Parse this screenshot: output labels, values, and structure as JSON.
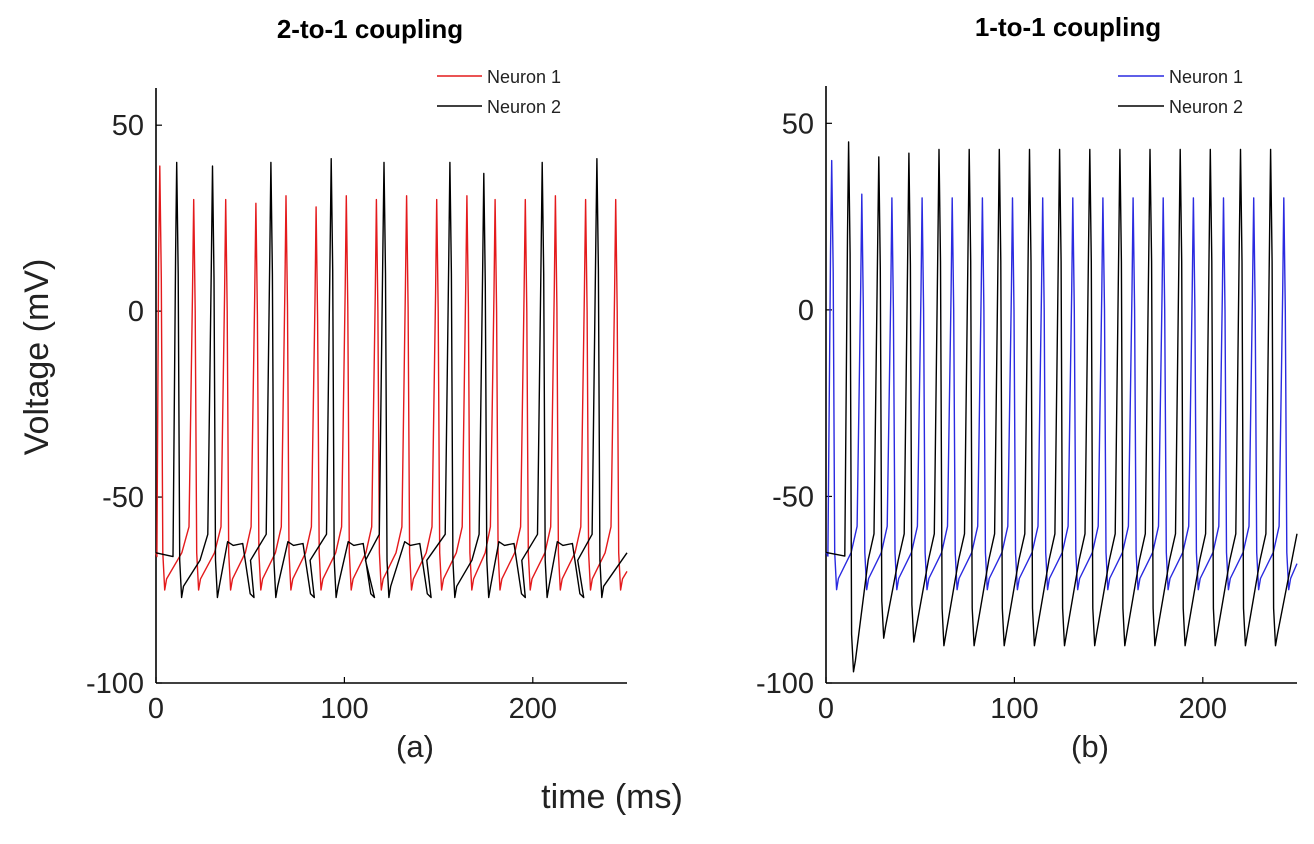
{
  "figure": {
    "xlabel": "time (ms)",
    "ylabel": "Voltage (mV)"
  },
  "colors": {
    "neuron1_left": "#e41a1c",
    "neuron1_right": "#2a2ae0",
    "neuron2": "#000000"
  },
  "chart_data": [
    {
      "type": "line",
      "title": "2-to-1 coupling",
      "sublabel": "(a)",
      "xlim": [
        0,
        250
      ],
      "ylim": [
        -100,
        60
      ],
      "xticks": [
        0,
        100,
        200
      ],
      "yticks": [
        50,
        0,
        -50,
        -100
      ],
      "xtick_labels": [
        "0",
        "100",
        "200"
      ],
      "ytick_labels": [
        "50",
        "0",
        "-50",
        "-100"
      ],
      "legend": [
        "Neuron 1",
        "Neuron 2"
      ],
      "legend_position": "top-right",
      "series": [
        {
          "name": "Neuron 1",
          "color": "#e41a1c",
          "rest": -75,
          "spike_times": [
            2,
            20,
            37,
            53,
            69,
            85,
            101,
            117,
            133,
            149,
            165,
            180,
            196,
            212,
            228,
            244
          ],
          "spike_peaks": [
            39,
            30,
            30,
            29,
            31,
            28,
            31,
            30,
            31,
            30,
            31,
            30,
            30,
            31,
            30,
            30
          ],
          "end_value": -70
        },
        {
          "name": "Neuron 2",
          "color": "#000000",
          "rest": -77,
          "spike_times": [
            11,
            30,
            61,
            93,
            121,
            156,
            174,
            205,
            234
          ],
          "spike_peaks": [
            40,
            39,
            40,
            41,
            40,
            40,
            37,
            40,
            41
          ],
          "hump_times": [
            44,
            76,
            108,
            138,
            188,
            219
          ],
          "hump_value": -63,
          "end_value": -65
        }
      ]
    },
    {
      "type": "line",
      "title": "1-to-1 coupling",
      "sublabel": "(b)",
      "xlim": [
        0,
        250
      ],
      "ylim": [
        -100,
        60
      ],
      "xticks": [
        0,
        100,
        200
      ],
      "yticks": [
        50,
        0,
        -50,
        -100
      ],
      "xtick_labels": [
        "0",
        "100",
        "200"
      ],
      "ytick_labels": [
        "50",
        "0",
        "-50",
        "-100"
      ],
      "legend": [
        "Neuron 1",
        "Neuron 2"
      ],
      "legend_position": "top-right",
      "series": [
        {
          "name": "Neuron 1",
          "color": "#2a2ae0",
          "rest": -75,
          "spike_times": [
            3,
            19,
            35,
            51,
            67,
            83,
            99,
            115,
            131,
            147,
            163,
            179,
            195,
            211,
            227,
            243
          ],
          "spike_peaks": [
            40,
            31,
            30,
            30,
            30,
            30,
            30,
            30,
            30,
            30,
            30,
            30,
            30,
            30,
            30,
            30
          ],
          "end_value": -68
        },
        {
          "name": "Neuron 2",
          "color": "#000000",
          "rest": -77,
          "spike_times": [
            12,
            28,
            44,
            60,
            76,
            92,
            108,
            124,
            140,
            156,
            172,
            188,
            204,
            220,
            236
          ],
          "spike_peaks": [
            45,
            41,
            42,
            43,
            43,
            43,
            43,
            43,
            43,
            43,
            43,
            43,
            43,
            43,
            43
          ],
          "trough_values": [
            -97,
            -88,
            -89,
            -90,
            -90,
            -90,
            -90,
            -90,
            -90,
            -90,
            -90,
            -90,
            -90,
            -90,
            -90
          ],
          "end_value": -60
        }
      ]
    }
  ]
}
